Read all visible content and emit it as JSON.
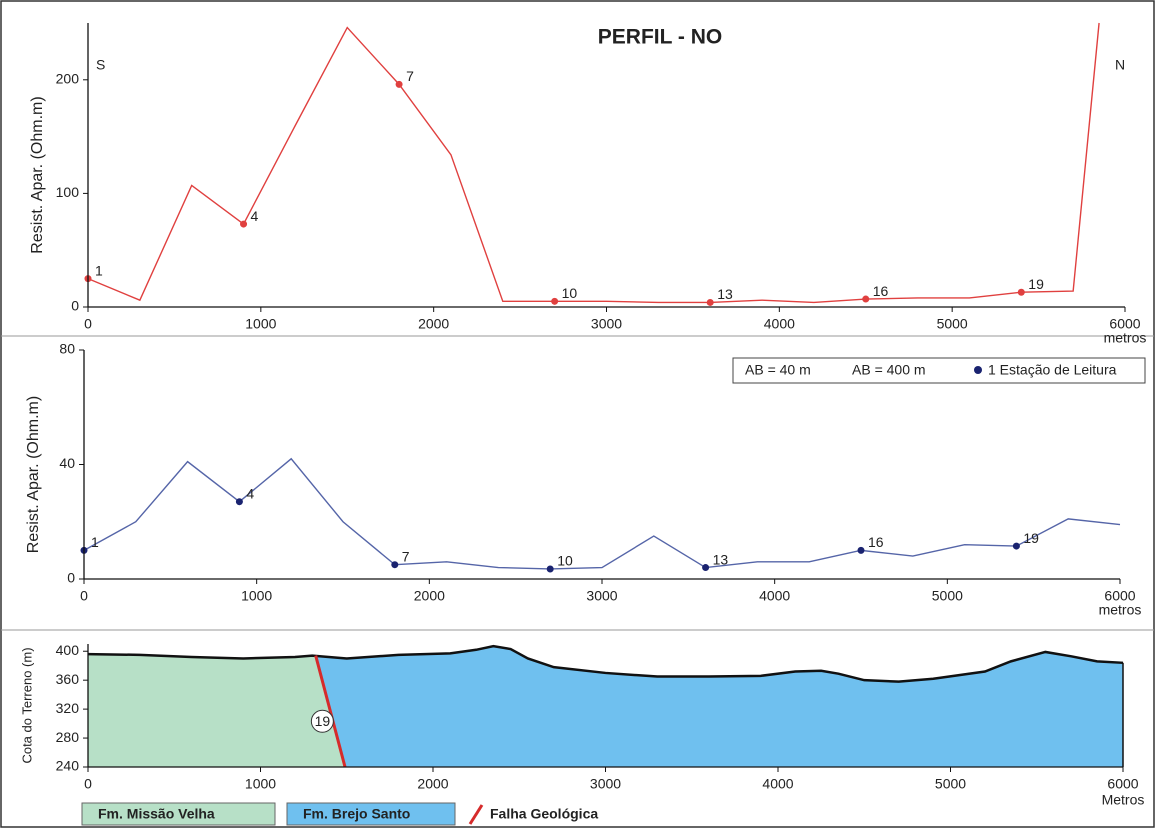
{
  "chart_data": [
    {
      "type": "line",
      "title": "PERFIL - NO",
      "ylabel": "Resist. Apar. (Ohm.m)",
      "xlabel": "metros",
      "annotations": [
        "S",
        "N"
      ],
      "series": [
        {
          "name": "AB = 40 m",
          "color": "#e0403f",
          "x": [
            0,
            300,
            600,
            900,
            1200,
            1500,
            1800,
            2100,
            2400,
            2700,
            3000,
            3300,
            3600,
            3900,
            4200,
            4500,
            4800,
            5100,
            5400,
            5700,
            5850
          ],
          "values": [
            25,
            6,
            107,
            73,
            160,
            246,
            196,
            134,
            5,
            5,
            5,
            4,
            4,
            6,
            4,
            7,
            8,
            8,
            13,
            14,
            250
          ],
          "point_labels": [
            "1",
            null,
            null,
            "4",
            null,
            null,
            "7",
            null,
            null,
            "10",
            null,
            null,
            "13",
            null,
            null,
            "16",
            null,
            null,
            "19",
            null,
            null
          ]
        }
      ],
      "xlim": [
        0,
        6000
      ],
      "xticks": [
        0,
        1000,
        2000,
        3000,
        4000,
        5000,
        6000
      ],
      "ylim": [
        0,
        250
      ],
      "yticks": [
        0,
        100,
        200
      ]
    },
    {
      "type": "line",
      "ylabel": "Resist. Apar. (Ohm.m)",
      "xlabel": "metros",
      "legend_note": "1 Estação de Leitura",
      "series": [
        {
          "name": "AB = 400 m",
          "color": "#5565a8",
          "marker_color": "#1a2370",
          "x": [
            0,
            300,
            600,
            900,
            1200,
            1500,
            1800,
            2100,
            2400,
            2700,
            3000,
            3300,
            3600,
            3900,
            4200,
            4500,
            4800,
            5100,
            5400,
            5700,
            6000
          ],
          "values": [
            10,
            20,
            41,
            27,
            42,
            20,
            5,
            6,
            4,
            3.5,
            4,
            15,
            4,
            6,
            6,
            10,
            8,
            12,
            11.5,
            21,
            19
          ],
          "point_labels": [
            "1",
            null,
            null,
            "4",
            null,
            null,
            "7",
            null,
            null,
            "10",
            null,
            null,
            "13",
            null,
            null,
            "16",
            null,
            null,
            "19",
            null,
            null
          ]
        }
      ],
      "xlim": [
        0,
        6000
      ],
      "xticks": [
        0,
        1000,
        2000,
        3000,
        4000,
        5000,
        6000
      ],
      "ylim": [
        0,
        80
      ],
      "yticks": [
        0,
        40,
        80
      ]
    },
    {
      "type": "area",
      "ylabel": "Cota do Terreno (m)",
      "xlabel": "Metros",
      "terrain": {
        "x": [
          0,
          300,
          600,
          900,
          1200,
          1300,
          1500,
          1800,
          2100,
          2250,
          2350,
          2450,
          2550,
          2700,
          3000,
          3300,
          3600,
          3900,
          4100,
          4250,
          4350,
          4500,
          4700,
          4900,
          5200,
          5350,
          5550,
          5700,
          5850,
          6000
        ],
        "values": [
          396,
          395,
          392,
          390,
          392,
          394,
          390,
          395,
          397,
          402,
          407,
          403,
          390,
          378,
          370,
          365,
          365,
          366,
          372,
          373,
          369,
          360,
          358,
          362,
          372,
          386,
          399,
          393,
          386,
          384
        ]
      },
      "formations": [
        {
          "name": "Fm. Missão Velha",
          "color": "#b7e0c7"
        },
        {
          "name": "Fm. Brejo Santo",
          "color": "#6fc0ef"
        }
      ],
      "fault": {
        "name": "Falha Geológica",
        "color": "#d62b2b",
        "x": [
          1320,
          1490
        ],
        "y": [
          394,
          240
        ],
        "label": "19"
      },
      "xlim": [
        0,
        6000
      ],
      "xticks": [
        0,
        1000,
        2000,
        3000,
        4000,
        5000,
        6000
      ],
      "ylim": [
        240,
        410
      ],
      "yticks": [
        240,
        280,
        320,
        360,
        400
      ]
    }
  ]
}
